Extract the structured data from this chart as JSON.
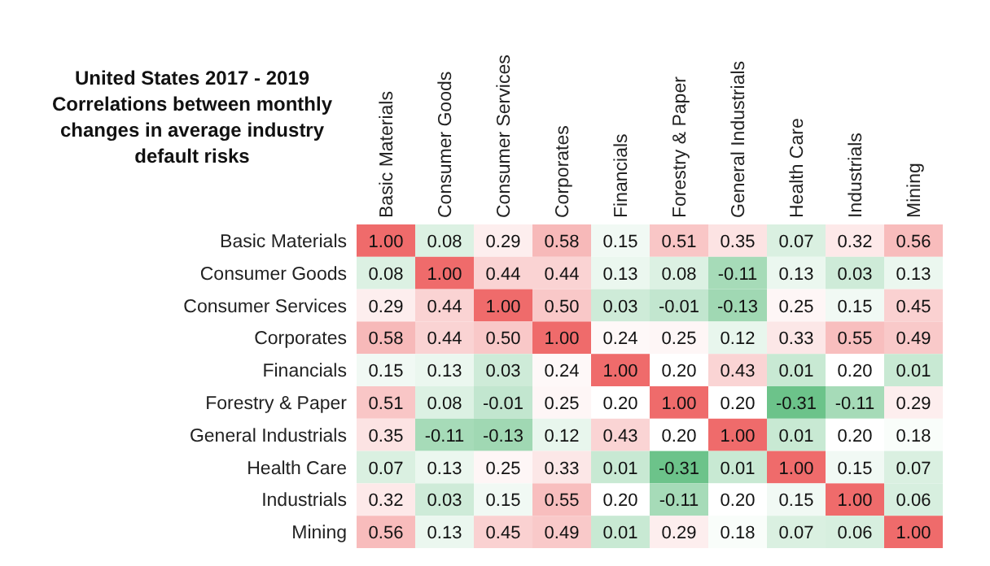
{
  "chart_data": {
    "type": "heatmap",
    "title": "United States 2017 - 2019 Correlations between monthly changes in average industry default risks",
    "categories": [
      "Basic Materials",
      "Consumer Goods",
      "Consumer Services",
      "Corporates",
      "Financials",
      "Forestry & Paper",
      "General Industrials",
      "Health Care",
      "Industrials",
      "Mining"
    ],
    "y_categories": [
      "Basic Materials",
      "Consumer Goods",
      "Consumer Services",
      "Corporates",
      "Financials",
      "Forestry & Paper",
      "General Industrials",
      "Health Care",
      "Industrials",
      "Mining"
    ],
    "cells": [
      [
        1.0,
        0.08,
        0.29,
        0.58,
        0.15,
        0.51,
        0.35,
        0.07,
        0.32,
        0.56
      ],
      [
        0.08,
        1.0,
        0.44,
        0.44,
        0.13,
        0.08,
        -0.11,
        0.13,
        0.03,
        0.13
      ],
      [
        0.29,
        0.44,
        1.0,
        0.5,
        0.03,
        -0.01,
        -0.13,
        0.25,
        0.15,
        0.45
      ],
      [
        0.58,
        0.44,
        0.5,
        1.0,
        0.24,
        0.25,
        0.12,
        0.33,
        0.55,
        0.49
      ],
      [
        0.15,
        0.13,
        0.03,
        0.24,
        1.0,
        0.2,
        0.43,
        0.01,
        0.2,
        0.01
      ],
      [
        0.51,
        0.08,
        -0.01,
        0.25,
        0.2,
        1.0,
        0.2,
        -0.31,
        -0.11,
        0.29
      ],
      [
        0.35,
        -0.11,
        -0.13,
        0.12,
        0.43,
        0.2,
        1.0,
        0.01,
        0.2,
        0.18
      ],
      [
        0.07,
        0.13,
        0.25,
        0.33,
        0.01,
        -0.31,
        0.01,
        1.0,
        0.15,
        0.07
      ],
      [
        0.32,
        0.03,
        0.15,
        0.55,
        0.2,
        -0.11,
        0.2,
        0.15,
        1.0,
        0.06
      ],
      [
        0.56,
        0.13,
        0.45,
        0.49,
        0.01,
        0.29,
        0.18,
        0.07,
        0.06,
        1.0
      ]
    ],
    "cell_labels": [
      [
        "1.00",
        "0.08",
        "0.29",
        "0.58",
        "0.15",
        "0.51",
        "0.35",
        "0.07",
        "0.32",
        "0.56"
      ],
      [
        "0.08",
        "1.00",
        "0.44",
        "0.44",
        "0.13",
        "0.08",
        "-0.11",
        "0.13",
        "0.03",
        "0.13"
      ],
      [
        "0.29",
        "0.44",
        "1.00",
        "0.50",
        "0.03",
        "-0.01",
        "-0.13",
        "0.25",
        "0.15",
        "0.45"
      ],
      [
        "0.58",
        "0.44",
        "0.50",
        "1.00",
        "0.24",
        "0.25",
        "0.12",
        "0.33",
        "0.55",
        "0.49"
      ],
      [
        "0.15",
        "0.13",
        "0.03",
        "0.24",
        "1.00",
        "0.20",
        "0.43",
        "0.01",
        "0.20",
        "0.01"
      ],
      [
        "0.51",
        "0.08",
        "-0.01",
        "0.25",
        "0.20",
        "1.00",
        "0.20",
        "-0.31",
        "-0.11",
        "0.29"
      ],
      [
        "0.35",
        "-0.11",
        "-0.13",
        "0.12",
        "0.43",
        "0.20",
        "1.00",
        "0.01",
        "0.20",
        "0.18"
      ],
      [
        "0.07",
        "0.13",
        "0.25",
        "0.33",
        "0.01",
        "-0.31",
        "0.01",
        "1.00",
        "0.15",
        "0.07"
      ],
      [
        "0.32",
        "0.03",
        "0.15",
        "0.55",
        "0.20",
        "-0.11",
        "0.20",
        "0.15",
        "1.00",
        "0.06"
      ],
      [
        "0.56",
        "0.13",
        "0.45",
        "0.49",
        "0.01",
        "0.29",
        "0.18",
        "0.07",
        "0.06",
        "1.00"
      ]
    ]
  }
}
